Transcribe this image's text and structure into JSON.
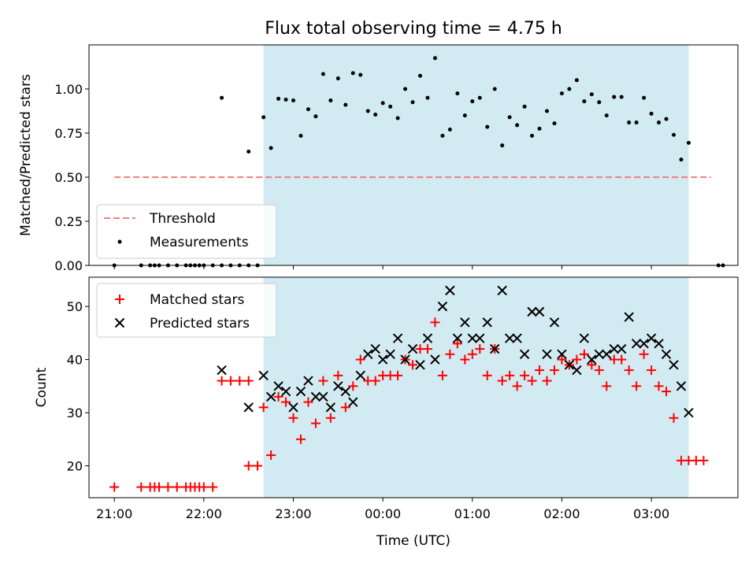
{
  "chart_data": [
    {
      "type": "scatter",
      "title": "Flux total observing time = 4.75 h",
      "xlabel": "",
      "ylabel": "Matched/Predicted stars",
      "xlim": [
        "20:43",
        "03:58"
      ],
      "ylim": [
        0,
        1.25
      ],
      "yticks": [
        "0.00",
        "0.25",
        "0.50",
        "0.75",
        "1.00"
      ],
      "grid": false,
      "legend_position": "lower-left",
      "observing_window": [
        "22:40",
        "03:25"
      ],
      "threshold": {
        "name": "Threshold",
        "value": 0.5,
        "x": [
          "21:00",
          "03:40"
        ],
        "color": "#f08080"
      },
      "series": [
        {
          "name": "Measurements",
          "color": "#000000",
          "points": [
            [
              "21:00",
              0
            ],
            [
              "21:18",
              0
            ],
            [
              "21:24",
              0
            ],
            [
              "21:27",
              0
            ],
            [
              "21:30",
              0
            ],
            [
              "21:36",
              0
            ],
            [
              "21:42",
              0
            ],
            [
              "21:48",
              0
            ],
            [
              "21:51",
              0
            ],
            [
              "21:54",
              0
            ],
            [
              "21:57",
              0
            ],
            [
              "22:00",
              0
            ],
            [
              "22:06",
              0
            ],
            [
              "22:12",
              0
            ],
            [
              "22:18",
              0
            ],
            [
              "22:24",
              0
            ],
            [
              "22:30",
              0
            ],
            [
              "22:36",
              0
            ],
            [
              "3:45",
              0
            ],
            [
              "3:48",
              0
            ],
            [
              "22:12",
              0.95
            ],
            [
              "22:30",
              0.645
            ],
            [
              "22:40",
              0.84
            ],
            [
              "22:45",
              0.665
            ],
            [
              "22:50",
              0.945
            ],
            [
              "22:55",
              0.94
            ],
            [
              "23:00",
              0.935
            ],
            [
              "23:05",
              0.735
            ],
            [
              "23:10",
              0.885
            ],
            [
              "23:15",
              0.845
            ],
            [
              "23:20",
              1.085
            ],
            [
              "23:25",
              0.935
            ],
            [
              "23:30",
              1.06
            ],
            [
              "23:35",
              0.91
            ],
            [
              "23:40",
              1.09
            ],
            [
              "23:45",
              1.08
            ],
            [
              "23:50",
              0.875
            ],
            [
              "23:55",
              0.855
            ],
            [
              "0:00",
              0.92
            ],
            [
              "0:05",
              0.9
            ],
            [
              "0:10",
              0.835
            ],
            [
              "0:15",
              1.0
            ],
            [
              "0:20",
              0.925
            ],
            [
              "0:25",
              1.075
            ],
            [
              "0:30",
              0.95
            ],
            [
              "0:35",
              1.175
            ],
            [
              "0:40",
              0.735
            ],
            [
              "0:45",
              0.77
            ],
            [
              "0:50",
              0.975
            ],
            [
              "0:55",
              0.85
            ],
            [
              "1:00",
              0.93
            ],
            [
              "1:05",
              0.95
            ],
            [
              "1:10",
              0.785
            ],
            [
              "1:15",
              1.0
            ],
            [
              "1:20",
              0.68
            ],
            [
              "1:25",
              0.84
            ],
            [
              "1:30",
              0.795
            ],
            [
              "1:35",
              0.9
            ],
            [
              "1:40",
              0.735
            ],
            [
              "1:45",
              0.775
            ],
            [
              "1:50",
              0.875
            ],
            [
              "1:55",
              0.805
            ],
            [
              "2:00",
              0.975
            ],
            [
              "2:05",
              1.0
            ],
            [
              "2:10",
              1.05
            ],
            [
              "2:15",
              0.93
            ],
            [
              "2:20",
              0.97
            ],
            [
              "2:25",
              0.925
            ],
            [
              "2:30",
              0.85
            ],
            [
              "2:35",
              0.955
            ],
            [
              "2:40",
              0.955
            ],
            [
              "2:45",
              0.81
            ],
            [
              "2:50",
              0.81
            ],
            [
              "2:55",
              0.95
            ],
            [
              "3:00",
              0.86
            ],
            [
              "3:05",
              0.81
            ],
            [
              "3:10",
              0.83
            ],
            [
              "3:15",
              0.74
            ],
            [
              "3:20",
              0.6
            ],
            [
              "3:25",
              0.695
            ]
          ]
        }
      ]
    },
    {
      "type": "scatter",
      "title": "",
      "xlabel": "Time (UTC)",
      "ylabel": "Count",
      "xlim": [
        "20:43",
        "03:58"
      ],
      "ylim": [
        14,
        55.5
      ],
      "yticks": [
        "20",
        "30",
        "40",
        "50"
      ],
      "xticks": [
        "21:00",
        "22:00",
        "23:00",
        "00:00",
        "01:00",
        "02:00",
        "03:00"
      ],
      "grid": false,
      "legend_position": "upper-left",
      "observing_window": [
        "22:40",
        "03:25"
      ],
      "series": [
        {
          "name": "Matched stars",
          "marker": "+",
          "color": "#ff0000",
          "points": [
            [
              "21:00",
              16
            ],
            [
              "21:18",
              16
            ],
            [
              "21:24",
              16
            ],
            [
              "21:27",
              16
            ],
            [
              "21:30",
              16
            ],
            [
              "21:36",
              16
            ],
            [
              "21:42",
              16
            ],
            [
              "21:48",
              16
            ],
            [
              "21:51",
              16
            ],
            [
              "21:54",
              16
            ],
            [
              "21:57",
              16
            ],
            [
              "22:00",
              16
            ],
            [
              "22:06",
              16
            ],
            [
              "22:12",
              36
            ],
            [
              "22:18",
              36
            ],
            [
              "22:24",
              36
            ],
            [
              "22:30",
              36
            ],
            [
              "22:30",
              20
            ],
            [
              "22:36",
              20
            ],
            [
              "22:40",
              31
            ],
            [
              "22:45",
              22
            ],
            [
              "22:50",
              33
            ],
            [
              "22:55",
              32
            ],
            [
              "23:00",
              29
            ],
            [
              "23:05",
              25
            ],
            [
              "23:10",
              32
            ],
            [
              "23:15",
              28
            ],
            [
              "23:20",
              36
            ],
            [
              "23:25",
              29
            ],
            [
              "23:30",
              37
            ],
            [
              "23:35",
              31
            ],
            [
              "23:40",
              35
            ],
            [
              "23:45",
              40
            ],
            [
              "23:50",
              36
            ],
            [
              "23:55",
              36
            ],
            [
              "0:00",
              37
            ],
            [
              "0:05",
              37
            ],
            [
              "0:10",
              37
            ],
            [
              "0:15",
              40
            ],
            [
              "0:20",
              39
            ],
            [
              "0:25",
              42
            ],
            [
              "0:30",
              42
            ],
            [
              "0:35",
              47
            ],
            [
              "0:40",
              37
            ],
            [
              "0:45",
              41
            ],
            [
              "0:50",
              43
            ],
            [
              "0:55",
              40
            ],
            [
              "1:00",
              41
            ],
            [
              "1:05",
              42
            ],
            [
              "1:10",
              37
            ],
            [
              "1:15",
              42
            ],
            [
              "1:20",
              36
            ],
            [
              "1:25",
              37
            ],
            [
              "1:30",
              35
            ],
            [
              "1:35",
              37
            ],
            [
              "1:40",
              36
            ],
            [
              "1:45",
              38
            ],
            [
              "1:50",
              36
            ],
            [
              "1:55",
              38
            ],
            [
              "2:00",
              40
            ],
            [
              "2:05",
              39
            ],
            [
              "2:10",
              40
            ],
            [
              "2:15",
              41
            ],
            [
              "2:20",
              39
            ],
            [
              "2:25",
              38
            ],
            [
              "2:30",
              35
            ],
            [
              "2:35",
              40
            ],
            [
              "2:40",
              40
            ],
            [
              "2:45",
              38
            ],
            [
              "2:50",
              35
            ],
            [
              "2:55",
              41
            ],
            [
              "3:00",
              38
            ],
            [
              "3:05",
              35
            ],
            [
              "3:10",
              34
            ],
            [
              "3:15",
              29
            ],
            [
              "3:20",
              21
            ],
            [
              "3:25",
              21
            ],
            [
              "3:30",
              21
            ],
            [
              "3:35",
              21
            ]
          ]
        },
        {
          "name": "Predicted stars",
          "marker": "x",
          "color": "#000000",
          "points": [
            [
              "22:12",
              38
            ],
            [
              "22:30",
              31
            ],
            [
              "22:40",
              37
            ],
            [
              "22:45",
              33
            ],
            [
              "22:50",
              35
            ],
            [
              "22:55",
              34
            ],
            [
              "23:00",
              31
            ],
            [
              "23:05",
              34
            ],
            [
              "23:10",
              36
            ],
            [
              "23:15",
              33
            ],
            [
              "23:20",
              33
            ],
            [
              "23:25",
              31
            ],
            [
              "23:30",
              35
            ],
            [
              "23:35",
              34
            ],
            [
              "23:40",
              32
            ],
            [
              "23:45",
              37
            ],
            [
              "23:50",
              41
            ],
            [
              "23:55",
              42
            ],
            [
              "0:00",
              40
            ],
            [
              "0:05",
              41
            ],
            [
              "0:10",
              44
            ],
            [
              "0:15",
              40
            ],
            [
              "0:20",
              42
            ],
            [
              "0:25",
              39
            ],
            [
              "0:30",
              44
            ],
            [
              "0:35",
              40
            ],
            [
              "0:40",
              50
            ],
            [
              "0:45",
              53
            ],
            [
              "0:50",
              44
            ],
            [
              "0:55",
              47
            ],
            [
              "1:00",
              44
            ],
            [
              "1:05",
              44
            ],
            [
              "1:10",
              47
            ],
            [
              "1:15",
              42
            ],
            [
              "1:20",
              53
            ],
            [
              "1:25",
              44
            ],
            [
              "1:30",
              44
            ],
            [
              "1:35",
              41
            ],
            [
              "1:40",
              49
            ],
            [
              "1:45",
              49
            ],
            [
              "1:50",
              41
            ],
            [
              "1:55",
              47
            ],
            [
              "2:00",
              41
            ],
            [
              "2:05",
              39
            ],
            [
              "2:10",
              38
            ],
            [
              "2:15",
              44
            ],
            [
              "2:20",
              40
            ],
            [
              "2:25",
              41
            ],
            [
              "2:30",
              41
            ],
            [
              "2:35",
              42
            ],
            [
              "2:40",
              42
            ],
            [
              "2:45",
              48
            ],
            [
              "2:50",
              43
            ],
            [
              "2:55",
              43
            ],
            [
              "3:00",
              44
            ],
            [
              "3:05",
              43
            ],
            [
              "3:10",
              41
            ],
            [
              "3:15",
              39
            ],
            [
              "3:20",
              35
            ],
            [
              "3:25",
              30
            ]
          ]
        }
      ]
    }
  ]
}
